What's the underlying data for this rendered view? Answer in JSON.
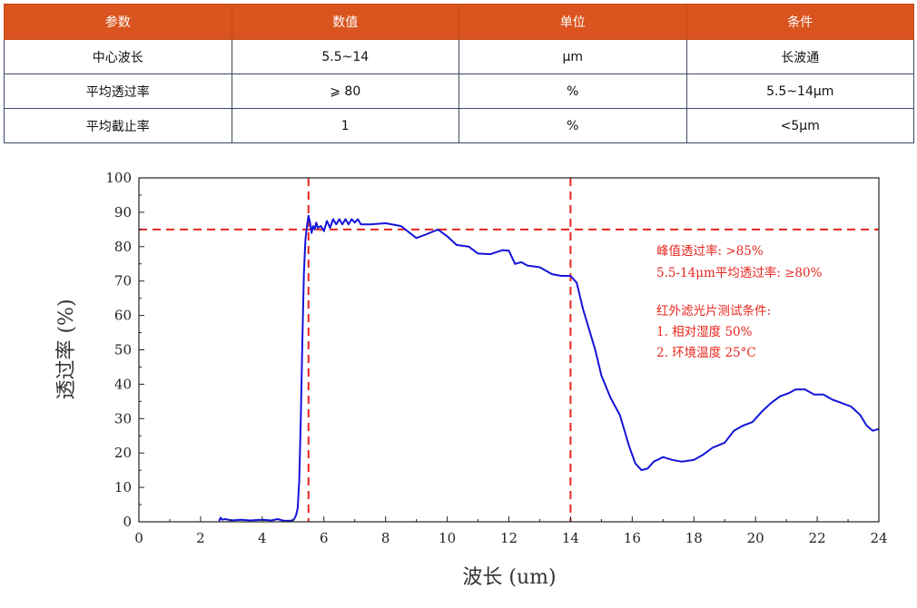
{
  "table": {
    "headers": [
      "参数",
      "数值",
      "单位",
      "条件"
    ],
    "rows": [
      [
        "中心波长",
        "5.5~14",
        "μm",
        "长波通"
      ],
      [
        "平均透过率",
        "⩾ 80",
        "%",
        "5.5~14μm"
      ],
      [
        "平均截止率",
        "1",
        "%",
        "<5μm"
      ]
    ]
  },
  "colors": {
    "header_bg": "#D9541E",
    "curve": "#1414d8",
    "reference_lines": "#e8261e",
    "annotation_text": "#e8261e"
  },
  "chart_data": {
    "type": "line",
    "title": "",
    "xlabel": "波长 (um)",
    "ylabel": "透过率 (%)",
    "xlim": [
      0,
      24
    ],
    "ylim": [
      0,
      100
    ],
    "xticks": [
      0,
      2,
      4,
      6,
      8,
      10,
      12,
      14,
      16,
      18,
      20,
      22,
      24
    ],
    "yticks": [
      0,
      10,
      20,
      30,
      40,
      50,
      60,
      70,
      80,
      90,
      100
    ],
    "grid": false,
    "reference_lines": {
      "vertical": [
        5.5,
        14
      ],
      "horizontal": [
        85
      ],
      "style": "dashed"
    },
    "annotations": [
      "峰值透过率: >85%",
      "5.5-14μm平均透过率: ≥80%",
      "红外滤光片测试条件:",
      "1. 相对湿度 50%",
      "2. 环境温度 25°C"
    ],
    "series": [
      {
        "x": [
          2.6,
          2.65,
          2.7,
          2.8,
          3.0,
          3.3,
          3.6,
          4.0,
          4.3,
          4.5,
          4.7,
          4.9,
          5.0,
          5.05,
          5.1,
          5.15,
          5.2,
          5.25,
          5.3,
          5.35,
          5.4,
          5.45,
          5.5,
          5.55,
          5.6,
          5.65,
          5.7,
          5.75,
          5.8,
          5.9,
          6.0,
          6.1,
          6.2,
          6.3,
          6.4,
          6.5,
          6.6,
          6.7,
          6.8,
          6.9,
          7.0,
          7.1,
          7.2,
          7.5,
          8.0,
          8.5,
          9.0,
          9.3,
          9.7,
          10.0,
          10.3,
          10.7,
          11.0,
          11.4,
          11.8,
          12.0,
          12.2,
          12.4,
          12.6,
          13.0,
          13.4,
          13.7,
          14.0,
          14.2,
          14.4,
          14.6,
          14.8,
          15.0,
          15.3,
          15.6,
          15.9,
          16.1,
          16.3,
          16.5,
          16.7,
          17.0,
          17.3,
          17.6,
          18.0,
          18.3,
          18.6,
          19.0,
          19.3,
          19.6,
          19.9,
          20.2,
          20.5,
          20.8,
          21.1,
          21.3,
          21.6,
          21.9,
          22.2,
          22.5,
          22.8,
          23.1,
          23.4,
          23.6,
          23.8,
          24.0
        ],
        "y": [
          0.2,
          1.2,
          0.6,
          0.8,
          0.4,
          0.6,
          0.4,
          0.6,
          0.4,
          0.8,
          0.3,
          0.3,
          0.5,
          1.0,
          2.0,
          4.0,
          12.0,
          30.0,
          52.0,
          72.0,
          82.0,
          86.0,
          89.0,
          87.0,
          84.0,
          86.0,
          85.0,
          87.0,
          85.5,
          86.0,
          84.5,
          87.5,
          85.5,
          88.0,
          86.5,
          88.0,
          86.5,
          88.0,
          86.5,
          88.0,
          87.0,
          88.0,
          86.5,
          86.5,
          86.8,
          86.0,
          82.5,
          83.5,
          85.0,
          83.0,
          80.5,
          80.0,
          78.0,
          77.8,
          79.0,
          78.8,
          75.0,
          75.5,
          74.5,
          74.0,
          72.0,
          71.5,
          71.5,
          69.5,
          62.0,
          56.0,
          50.0,
          42.5,
          36.0,
          31.0,
          22.0,
          17.0,
          15.0,
          15.5,
          17.5,
          18.8,
          18.0,
          17.5,
          18.0,
          19.5,
          21.5,
          23.0,
          26.5,
          28.0,
          29.0,
          32.0,
          34.5,
          36.5,
          37.5,
          38.5,
          38.5,
          37.0,
          37.0,
          35.5,
          34.5,
          33.5,
          31.0,
          28.0,
          26.5,
          27.0
        ]
      }
    ]
  }
}
